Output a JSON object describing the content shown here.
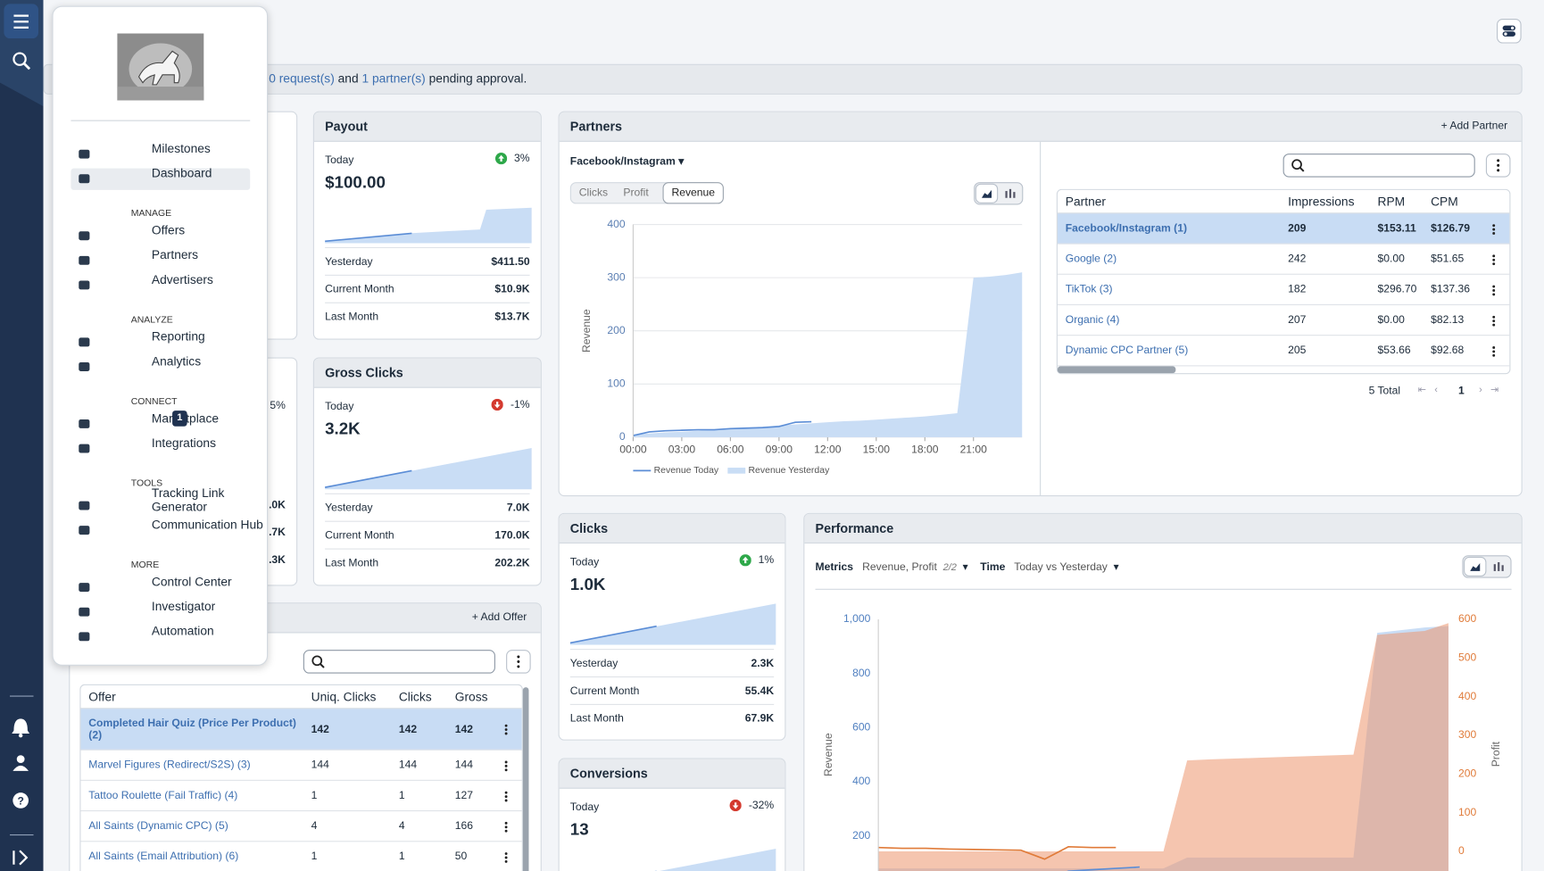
{
  "banner": {
    "requests": "0 request(s)",
    "and": "and",
    "partners": "1 partner(s)",
    "pending": "pending approval."
  },
  "menu": {
    "top": [
      {
        "label": "Milestones"
      },
      {
        "label": "Dashboard",
        "active": true
      }
    ],
    "sections": [
      {
        "heading": "MANAGE",
        "items": [
          {
            "label": "Offers"
          },
          {
            "label": "Partners"
          },
          {
            "label": "Advertisers"
          }
        ]
      },
      {
        "heading": "ANALYZE",
        "items": [
          {
            "label": "Reporting"
          },
          {
            "label": "Analytics"
          }
        ]
      },
      {
        "heading": "CONNECT",
        "items": [
          {
            "label": "Marketplace",
            "badge": "1"
          },
          {
            "label": "Integrations"
          }
        ]
      },
      {
        "heading": "TOOLS",
        "items": [
          {
            "label": "Tracking Link Generator"
          },
          {
            "label": "Communication Hub"
          }
        ]
      },
      {
        "heading": "MORE",
        "items": [
          {
            "label": "Control Center"
          },
          {
            "label": "Investigator"
          },
          {
            "label": "Automation"
          }
        ]
      }
    ]
  },
  "hidden_fragments": [
    "5%",
    ".0K",
    ".7K",
    ".3K"
  ],
  "cards": [
    {
      "title": "Payout",
      "today_label": "Today",
      "change": "3%",
      "value": "$100.00",
      "rows": [
        {
          "label": "Yesterday",
          "value": "$411.50"
        },
        {
          "label": "Current Month",
          "value": "$10.9K"
        },
        {
          "label": "Last Month",
          "value": "$13.7K"
        }
      ]
    },
    {
      "title": "Gross Clicks",
      "today_label": "Today",
      "change": "-1%",
      "value": "3.2K",
      "rows": [
        {
          "label": "Yesterday",
          "value": "7.0K"
        },
        {
          "label": "Current Month",
          "value": "170.0K"
        },
        {
          "label": "Last Month",
          "value": "202.2K"
        }
      ]
    },
    {
      "title": "Clicks",
      "today_label": "Today",
      "change": "1%",
      "value": "1.0K",
      "rows": [
        {
          "label": "Yesterday",
          "value": "2.3K"
        },
        {
          "label": "Current Month",
          "value": "55.4K"
        },
        {
          "label": "Last Month",
          "value": "67.9K"
        }
      ]
    },
    {
      "title": "Conversions",
      "today_label": "Today",
      "change": "-32%",
      "value": "13",
      "rows": []
    }
  ],
  "offers": {
    "add": "Add Offer",
    "selected": 0,
    "columns": [
      "Offer",
      "Uniq. Clicks",
      "Clicks",
      "Gross"
    ],
    "rows": [
      [
        "Completed Hair Quiz (Price Per Product) (2)",
        "142",
        "142",
        "142"
      ],
      [
        "Marvel Figures (Redirect/S2S) (3)",
        "144",
        "144",
        "144"
      ],
      [
        "Tattoo Roulette (Fail Traffic) (4)",
        "1",
        "1",
        "127"
      ],
      [
        "All Saints (Dynamic CPC) (5)",
        "4",
        "4",
        "166"
      ],
      [
        "All Saints (Email Attribution) (6)",
        "1",
        "1",
        "50"
      ]
    ]
  },
  "partners": {
    "title": "Partners",
    "add": "Add Partner",
    "selector": "Facebook/Instagram",
    "tabs": [
      "Clicks",
      "Profit",
      "Revenue"
    ],
    "active_tab": "Revenue",
    "table": {
      "selected": 0,
      "columns": [
        "Partner",
        "Impressions",
        "RPM",
        "CPM"
      ],
      "rows": [
        [
          "Facebook/Instagram (1)",
          "209",
          "$153.11",
          "$126.79"
        ],
        [
          "Google (2)",
          "242",
          "$0.00",
          "$51.65"
        ],
        [
          "TikTok (3)",
          "182",
          "$296.70",
          "$137.36"
        ],
        [
          "Organic (4)",
          "207",
          "$0.00",
          "$82.13"
        ],
        [
          "Dynamic CPC Partner (5)",
          "205",
          "$53.66",
          "$92.68"
        ]
      ]
    },
    "total": "5 Total",
    "page": "1",
    "chart": {
      "type": "line",
      "ylabel": "Revenue",
      "legend": true,
      "grid": true,
      "ytick_color": "#5b7fb3",
      "x": [
        0,
        1,
        2,
        3,
        4,
        5,
        6,
        7,
        8,
        9,
        10,
        11,
        12,
        13,
        14,
        15,
        16,
        17,
        18,
        19,
        20,
        21,
        22,
        23,
        24
      ],
      "xlim": [
        0,
        24
      ],
      "xticks": [
        {
          "value": 0,
          "label": "00:00"
        },
        {
          "value": 3,
          "label": "03:00"
        },
        {
          "value": 6,
          "label": "06:00"
        },
        {
          "value": 9,
          "label": "09:00"
        },
        {
          "value": 12,
          "label": "12:00"
        },
        {
          "value": 15,
          "label": "15:00"
        },
        {
          "value": 18,
          "label": "18:00"
        },
        {
          "value": 21,
          "label": "21:00"
        }
      ],
      "ylim": [
        0,
        400
      ],
      "yticks": [
        0,
        100,
        200,
        300,
        400
      ],
      "series": [
        {
          "name": "Revenue Yesterday",
          "style": "area",
          "color": "#c9ddf5",
          "values": [
            5,
            7,
            9,
            10,
            12,
            14,
            16,
            18,
            20,
            22,
            24,
            26,
            28,
            30,
            31,
            33,
            35,
            37,
            39,
            42,
            45,
            300,
            302,
            305,
            310
          ]
        },
        {
          "name": "Revenue Today",
          "style": "line",
          "color": "#5b8dd6",
          "values": [
            3,
            10,
            12,
            13,
            14,
            14,
            16,
            17,
            18,
            20,
            28,
            29,
            null,
            null,
            null,
            null,
            null,
            null,
            null,
            null,
            null,
            null,
            null,
            null,
            null
          ]
        }
      ]
    }
  },
  "performance": {
    "title": "Performance",
    "metrics_label": "Metrics",
    "metrics": "Revenue, Profit",
    "metrics_count": "2/2",
    "time_label": "Time",
    "time": "Today vs Yesterday",
    "chart": {
      "type": "line",
      "ylabel": "Revenue",
      "y2label": "Profit",
      "legend": false,
      "grid": false,
      "ytick_color": "#4f7fc0",
      "y2tick_color": "#e07b39",
      "x": [
        0,
        1,
        2,
        3,
        4,
        5,
        6,
        7,
        8,
        9,
        10,
        11,
        12,
        13,
        14,
        15,
        16,
        17,
        18,
        19,
        20,
        21,
        22,
        23,
        24
      ],
      "xlim": [
        0,
        24
      ],
      "ylim": [
        0,
        1000
      ],
      "yticks": [
        200,
        400,
        600,
        800,
        {
          "value": 1000,
          "label": "1,000"
        }
      ],
      "y2lim": [
        -100,
        600
      ],
      "y2ticks": [
        0,
        100,
        200,
        300,
        400,
        500,
        600
      ],
      "series": [
        {
          "name": "Revenue Yesterday",
          "style": "area",
          "color": "#c9ddf5",
          "values": [
            80,
            80,
            80,
            80,
            80,
            80,
            80,
            80,
            80,
            80,
            80,
            80,
            80,
            120,
            120,
            120,
            120,
            120,
            120,
            120,
            120,
            950,
            960,
            970,
            975
          ]
        },
        {
          "name": "Profit Yesterday",
          "style": "area",
          "axis": "y2",
          "color": "rgba(236,150,110,0.55)",
          "values": [
            0,
            0,
            0,
            0,
            0,
            0,
            0,
            0,
            0,
            0,
            0,
            0,
            0,
            235,
            238,
            240,
            242,
            244,
            246,
            248,
            250,
            560,
            565,
            570,
            590
          ]
        },
        {
          "name": "Revenue Today",
          "style": "line",
          "color": "#5b8dd6",
          "values": [
            30,
            30,
            30,
            30,
            30,
            30,
            30,
            35,
            70,
            75,
            80,
            85,
            null,
            null,
            null,
            null,
            null,
            null,
            null,
            null,
            null,
            null,
            null,
            null,
            null
          ]
        },
        {
          "name": "Profit Today",
          "style": "line",
          "axis": "y2",
          "color": "#e07b39",
          "values": [
            10,
            8,
            8,
            6,
            5,
            4,
            3,
            -20,
            12,
            10,
            10,
            null,
            null,
            null,
            null,
            null,
            null,
            null,
            null,
            null,
            null,
            null,
            null,
            null,
            null
          ]
        }
      ]
    }
  }
}
